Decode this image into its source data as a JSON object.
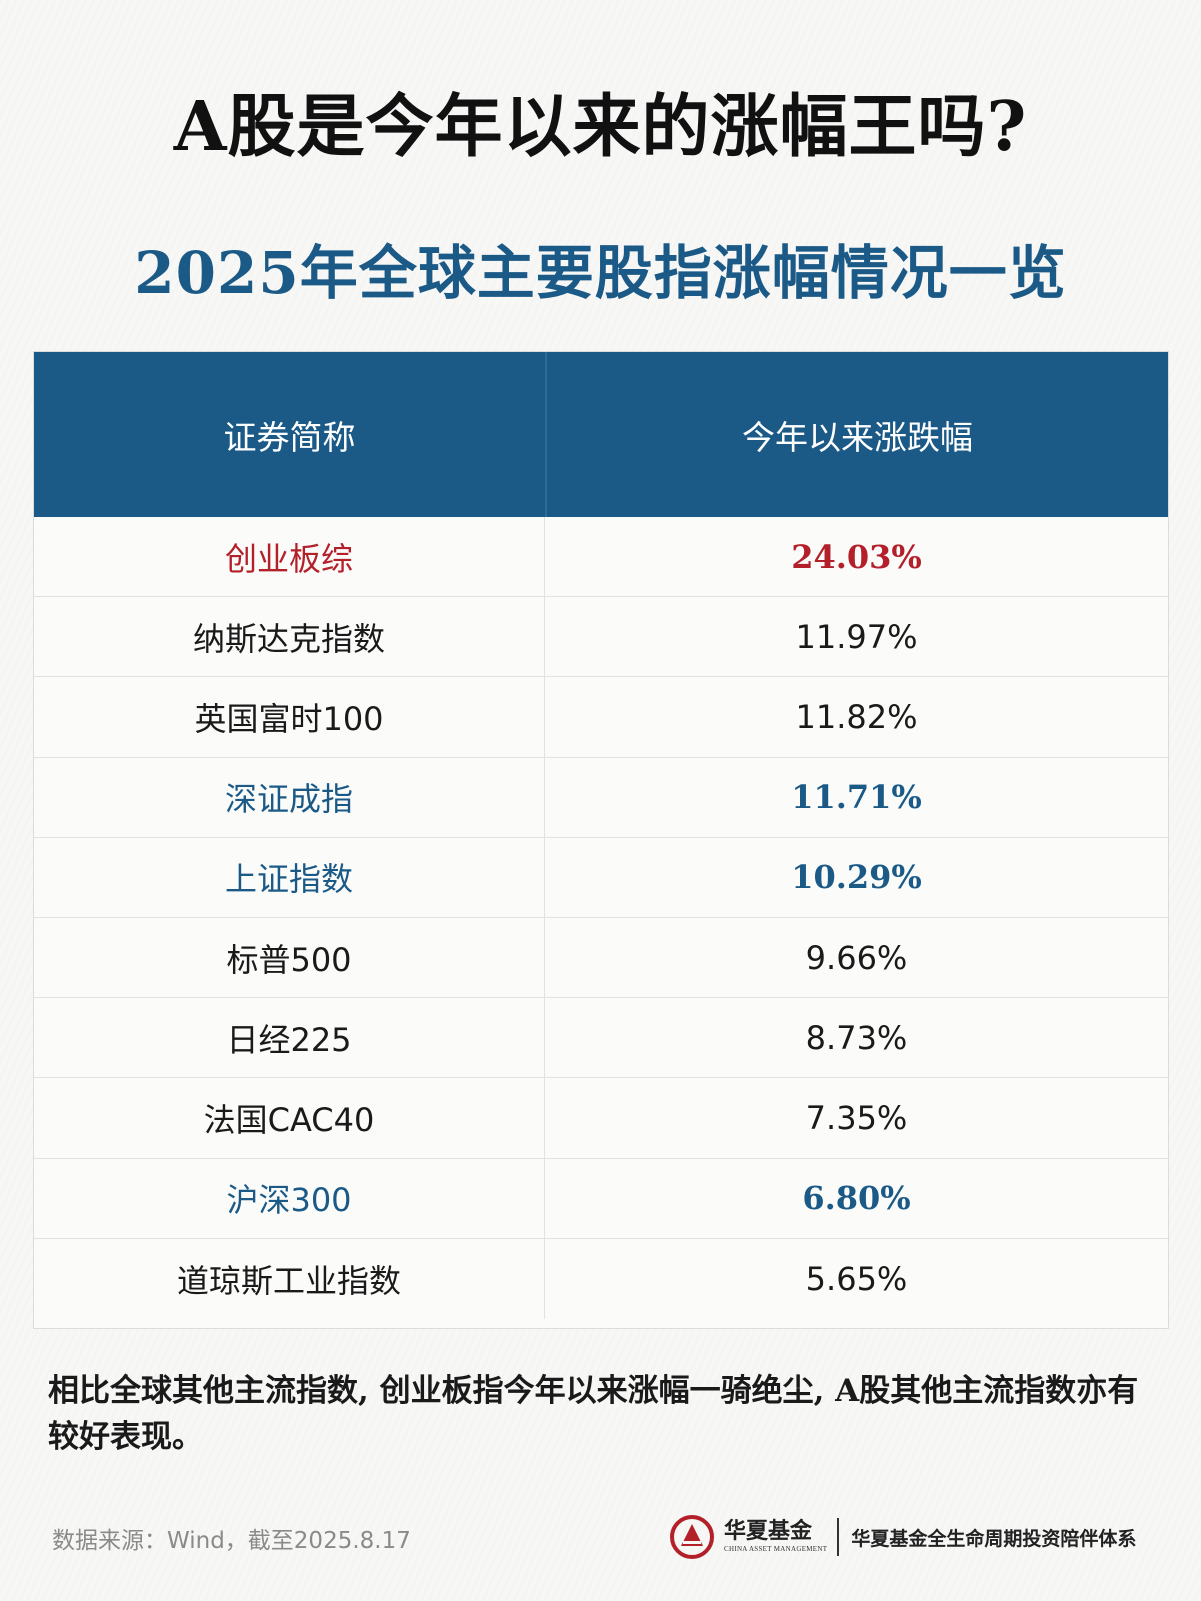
{
  "title": "A股是今年以来的涨幅王吗?",
  "subtitle": "2025年全球主要股指涨幅情况一览",
  "table": {
    "headers": [
      "证券简称",
      "今年以来涨跌幅"
    ],
    "rows": [
      {
        "name": "创业板综",
        "value": "24.03%",
        "style": "red"
      },
      {
        "name": "纳斯达克指数",
        "value": "11.97%",
        "style": "normal"
      },
      {
        "name": "英国富时100",
        "value": "11.82%",
        "style": "normal"
      },
      {
        "name": "深证成指",
        "value": "11.71%",
        "style": "blue"
      },
      {
        "name": "上证指数",
        "value": "10.29%",
        "style": "blue"
      },
      {
        "name": "标普500",
        "value": "9.66%",
        "style": "normal"
      },
      {
        "name": "日经225",
        "value": "8.73%",
        "style": "normal"
      },
      {
        "name": "法国CAC40",
        "value": "7.35%",
        "style": "normal"
      },
      {
        "name": "沪深300",
        "value": "6.80%",
        "style": "blue"
      },
      {
        "name": "道琼斯工业指数",
        "value": "5.65%",
        "style": "normal"
      }
    ]
  },
  "note": "相比全球其他主流指数, 创业板指今年以来涨幅一骑绝尘, A股其他主流指数亦有较好表现。",
  "footer": {
    "source": "数据来源：Wind，截至2025.8.17",
    "brand_cn": "华夏基金",
    "brand_en": "CHINA ASSET MANAGEMENT",
    "slogan": "华夏基金全生命周期投资陪伴体系"
  },
  "colors": {
    "accent_blue": "#1b5a87",
    "accent_red": "#b3202a"
  }
}
